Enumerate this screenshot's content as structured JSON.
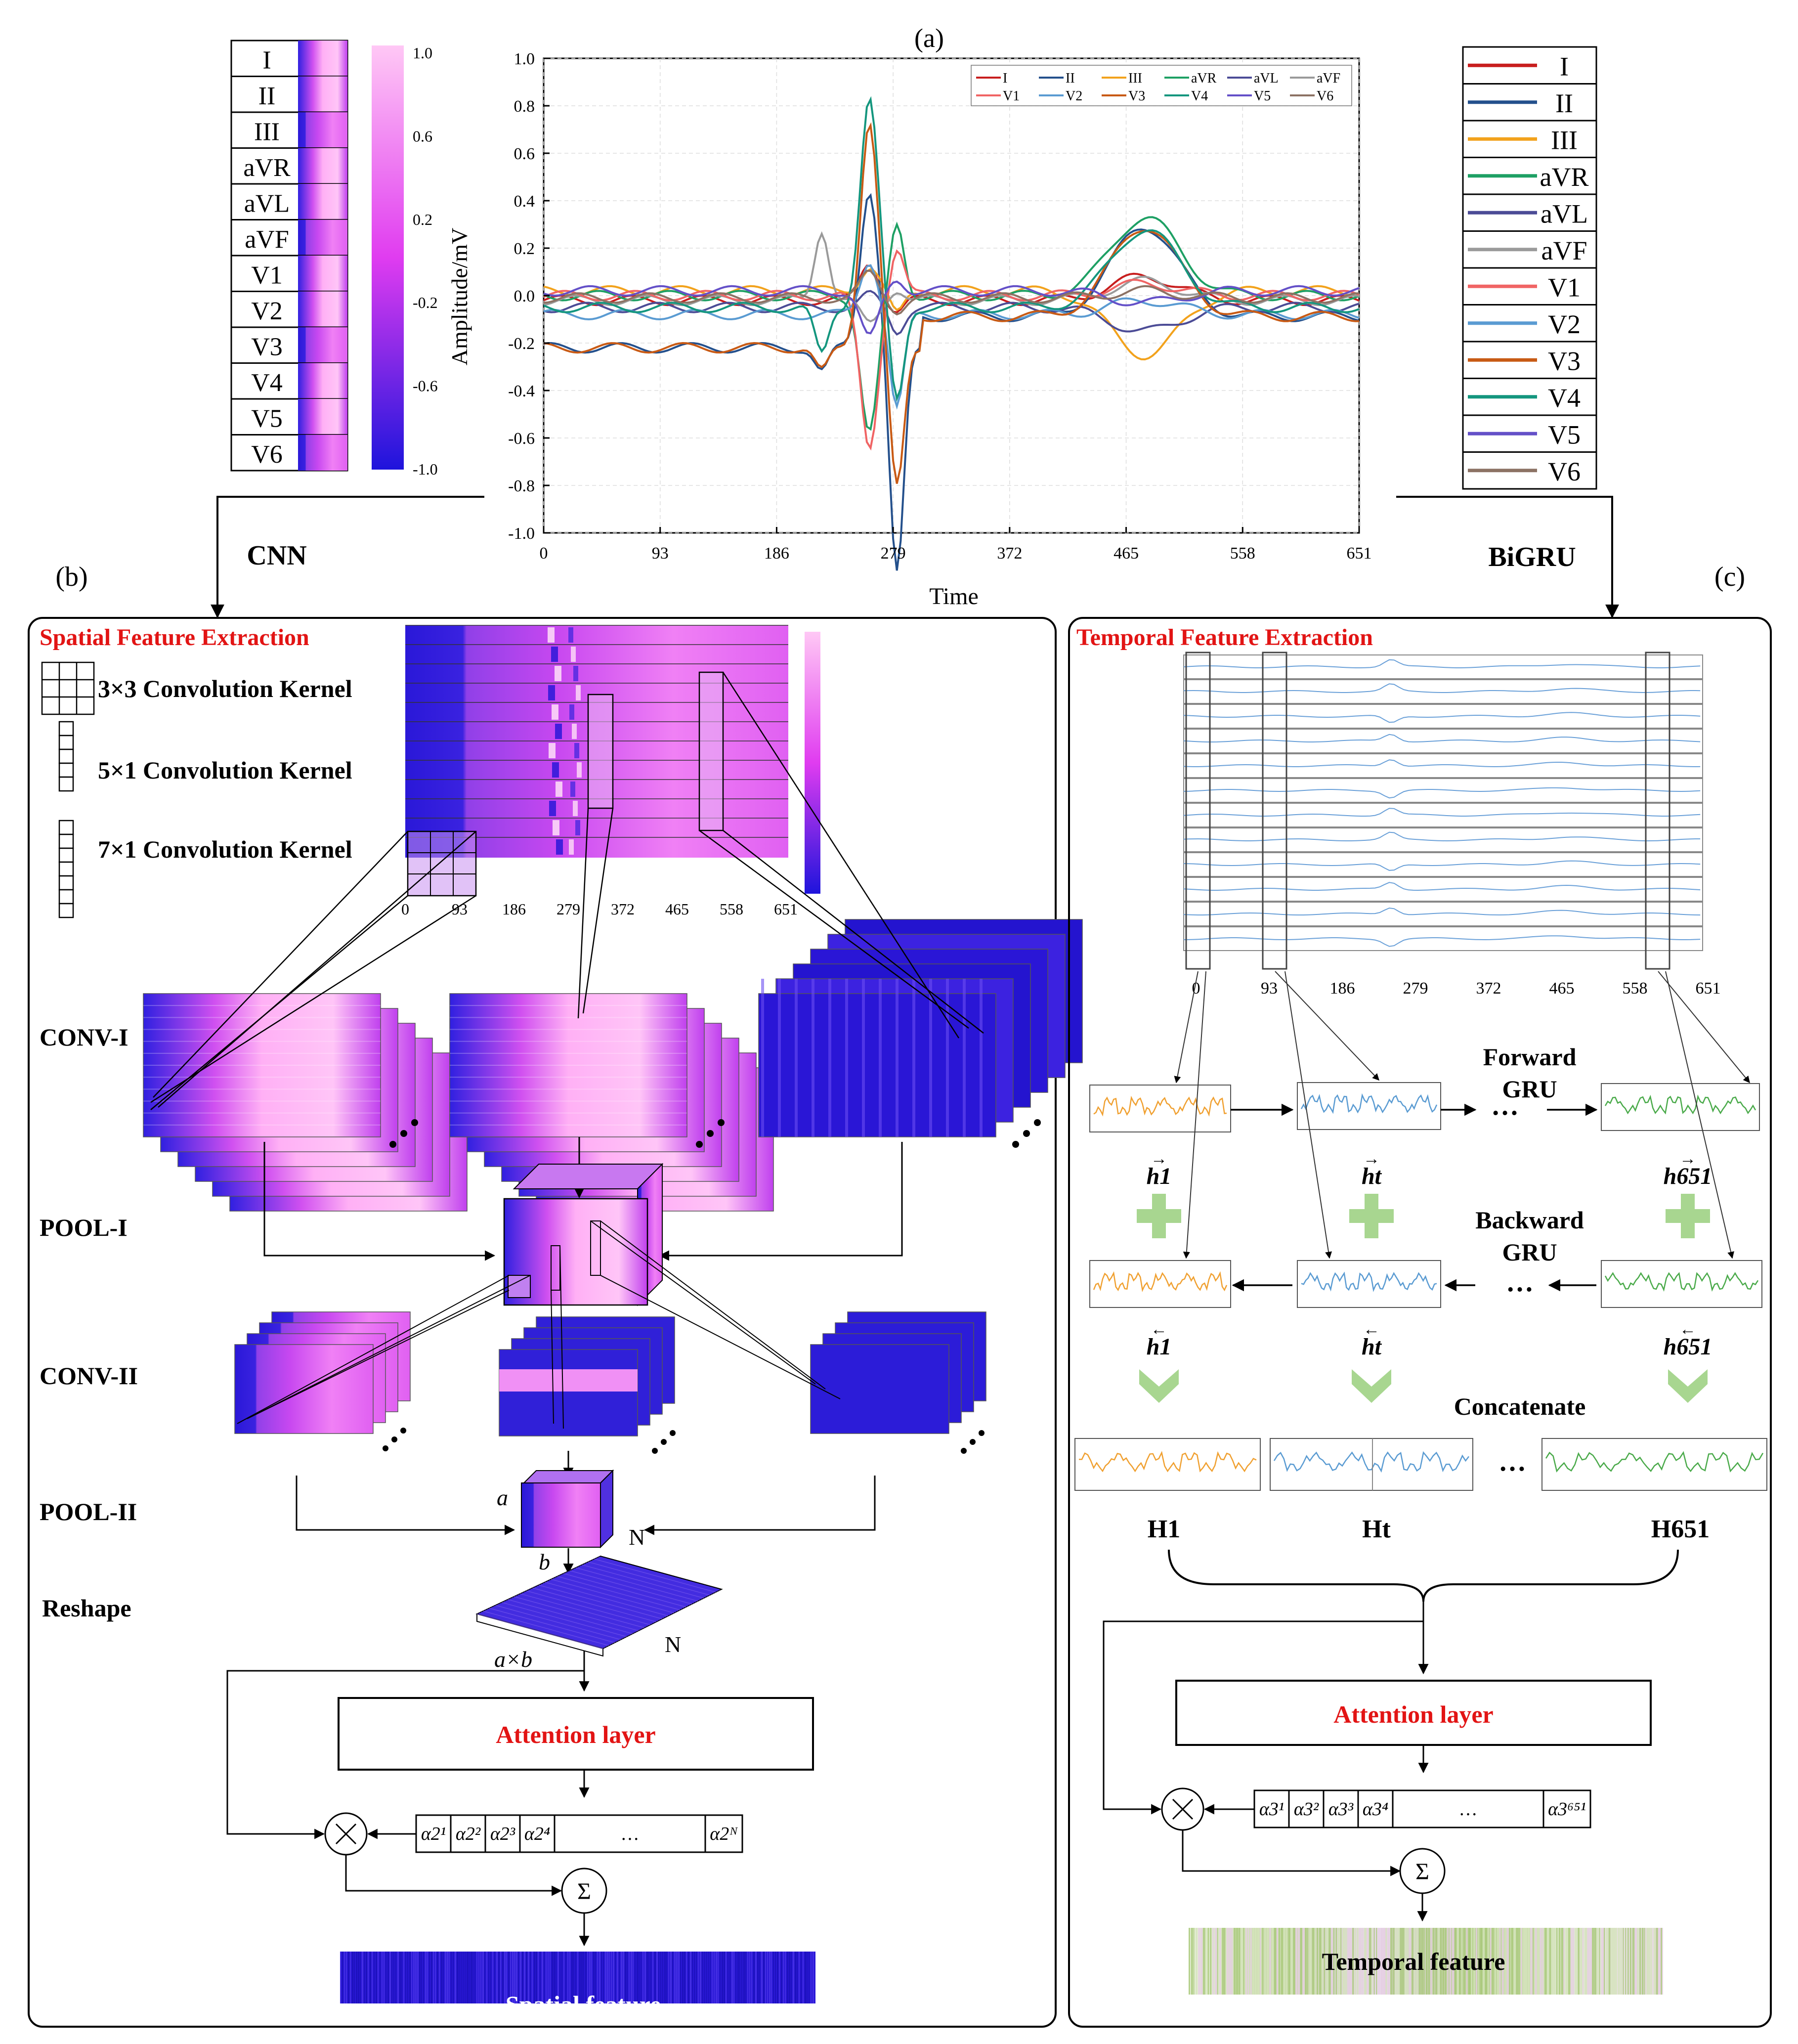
{
  "panel_a": {
    "label": "(a)",
    "y_axis_label": "Amplitude/mV",
    "x_axis_label": "Time",
    "x_ticks": [
      "0",
      "93",
      "186",
      "279",
      "372",
      "465",
      "558",
      "651"
    ],
    "y_ticks": [
      "1.0",
      "0.8",
      "0.6",
      "0.4",
      "0.2",
      "0.0",
      "-0.2",
      "-0.4",
      "-0.6",
      "-0.8",
      "-1.0"
    ],
    "colorbar_ticks": [
      "1.0",
      "0.6",
      "0.2",
      "-0.2",
      "-0.6",
      "-1.0"
    ],
    "leads": [
      "I",
      "II",
      "III",
      "aVR",
      "aVL",
      "aVF",
      "V1",
      "V2",
      "V3",
      "V4",
      "V5",
      "V6"
    ],
    "lead_colors": [
      "#c81e1e",
      "#24508c",
      "#f2a21c",
      "#1ea064",
      "#4c4c96",
      "#9a9a9a",
      "#f06464",
      "#5a9bd2",
      "#c85a14",
      "#14967e",
      "#6450c8",
      "#8c7264"
    ]
  },
  "labels": {
    "cnn": "CNN",
    "bigru": "BiGRU",
    "b": "(b)",
    "c": "(c)"
  },
  "panel_b": {
    "title": "Spatial Feature Extraction",
    "kernels": [
      "3×3 Convolution Kernel",
      "5×1 Convolution Kernel",
      "7×1 Convolution Kernel"
    ],
    "heatmap_ticks": [
      "0",
      "93",
      "186",
      "279",
      "372",
      "465",
      "558",
      "651"
    ],
    "stage_labels": [
      "CONV-I",
      "POOL-I",
      "CONV-II",
      "POOL-II",
      "Reshape"
    ],
    "dim_a": "a",
    "dim_b": "b",
    "dim_n": "N",
    "dim_axb": "a×b",
    "dim_n2": "N",
    "attention": "Attention layer",
    "alphas": [
      "α2¹",
      "α2²",
      "α2³",
      "α2⁴",
      "…",
      "α2ᴺ"
    ],
    "output": "Spatial feature"
  },
  "panel_c": {
    "title": "Temporal Feature Extraction",
    "ticks": [
      "0",
      "93",
      "186",
      "279",
      "372",
      "465",
      "558",
      "651"
    ],
    "forward": [
      "Forward",
      "GRU"
    ],
    "backward": [
      "Backward",
      "GRU"
    ],
    "h_fwd": [
      "h1",
      "ht",
      "h651"
    ],
    "h_bwd": [
      "h1",
      "ht",
      "h651"
    ],
    "concat": "Concatenate",
    "H": [
      "H1",
      "Ht",
      "H651"
    ],
    "dots": "…",
    "attention": "Attention layer",
    "alphas": [
      "α3¹",
      "α3²",
      "α3³",
      "α3⁴",
      "…",
      "α3⁶⁵¹"
    ],
    "output": "Temporal feature"
  }
}
